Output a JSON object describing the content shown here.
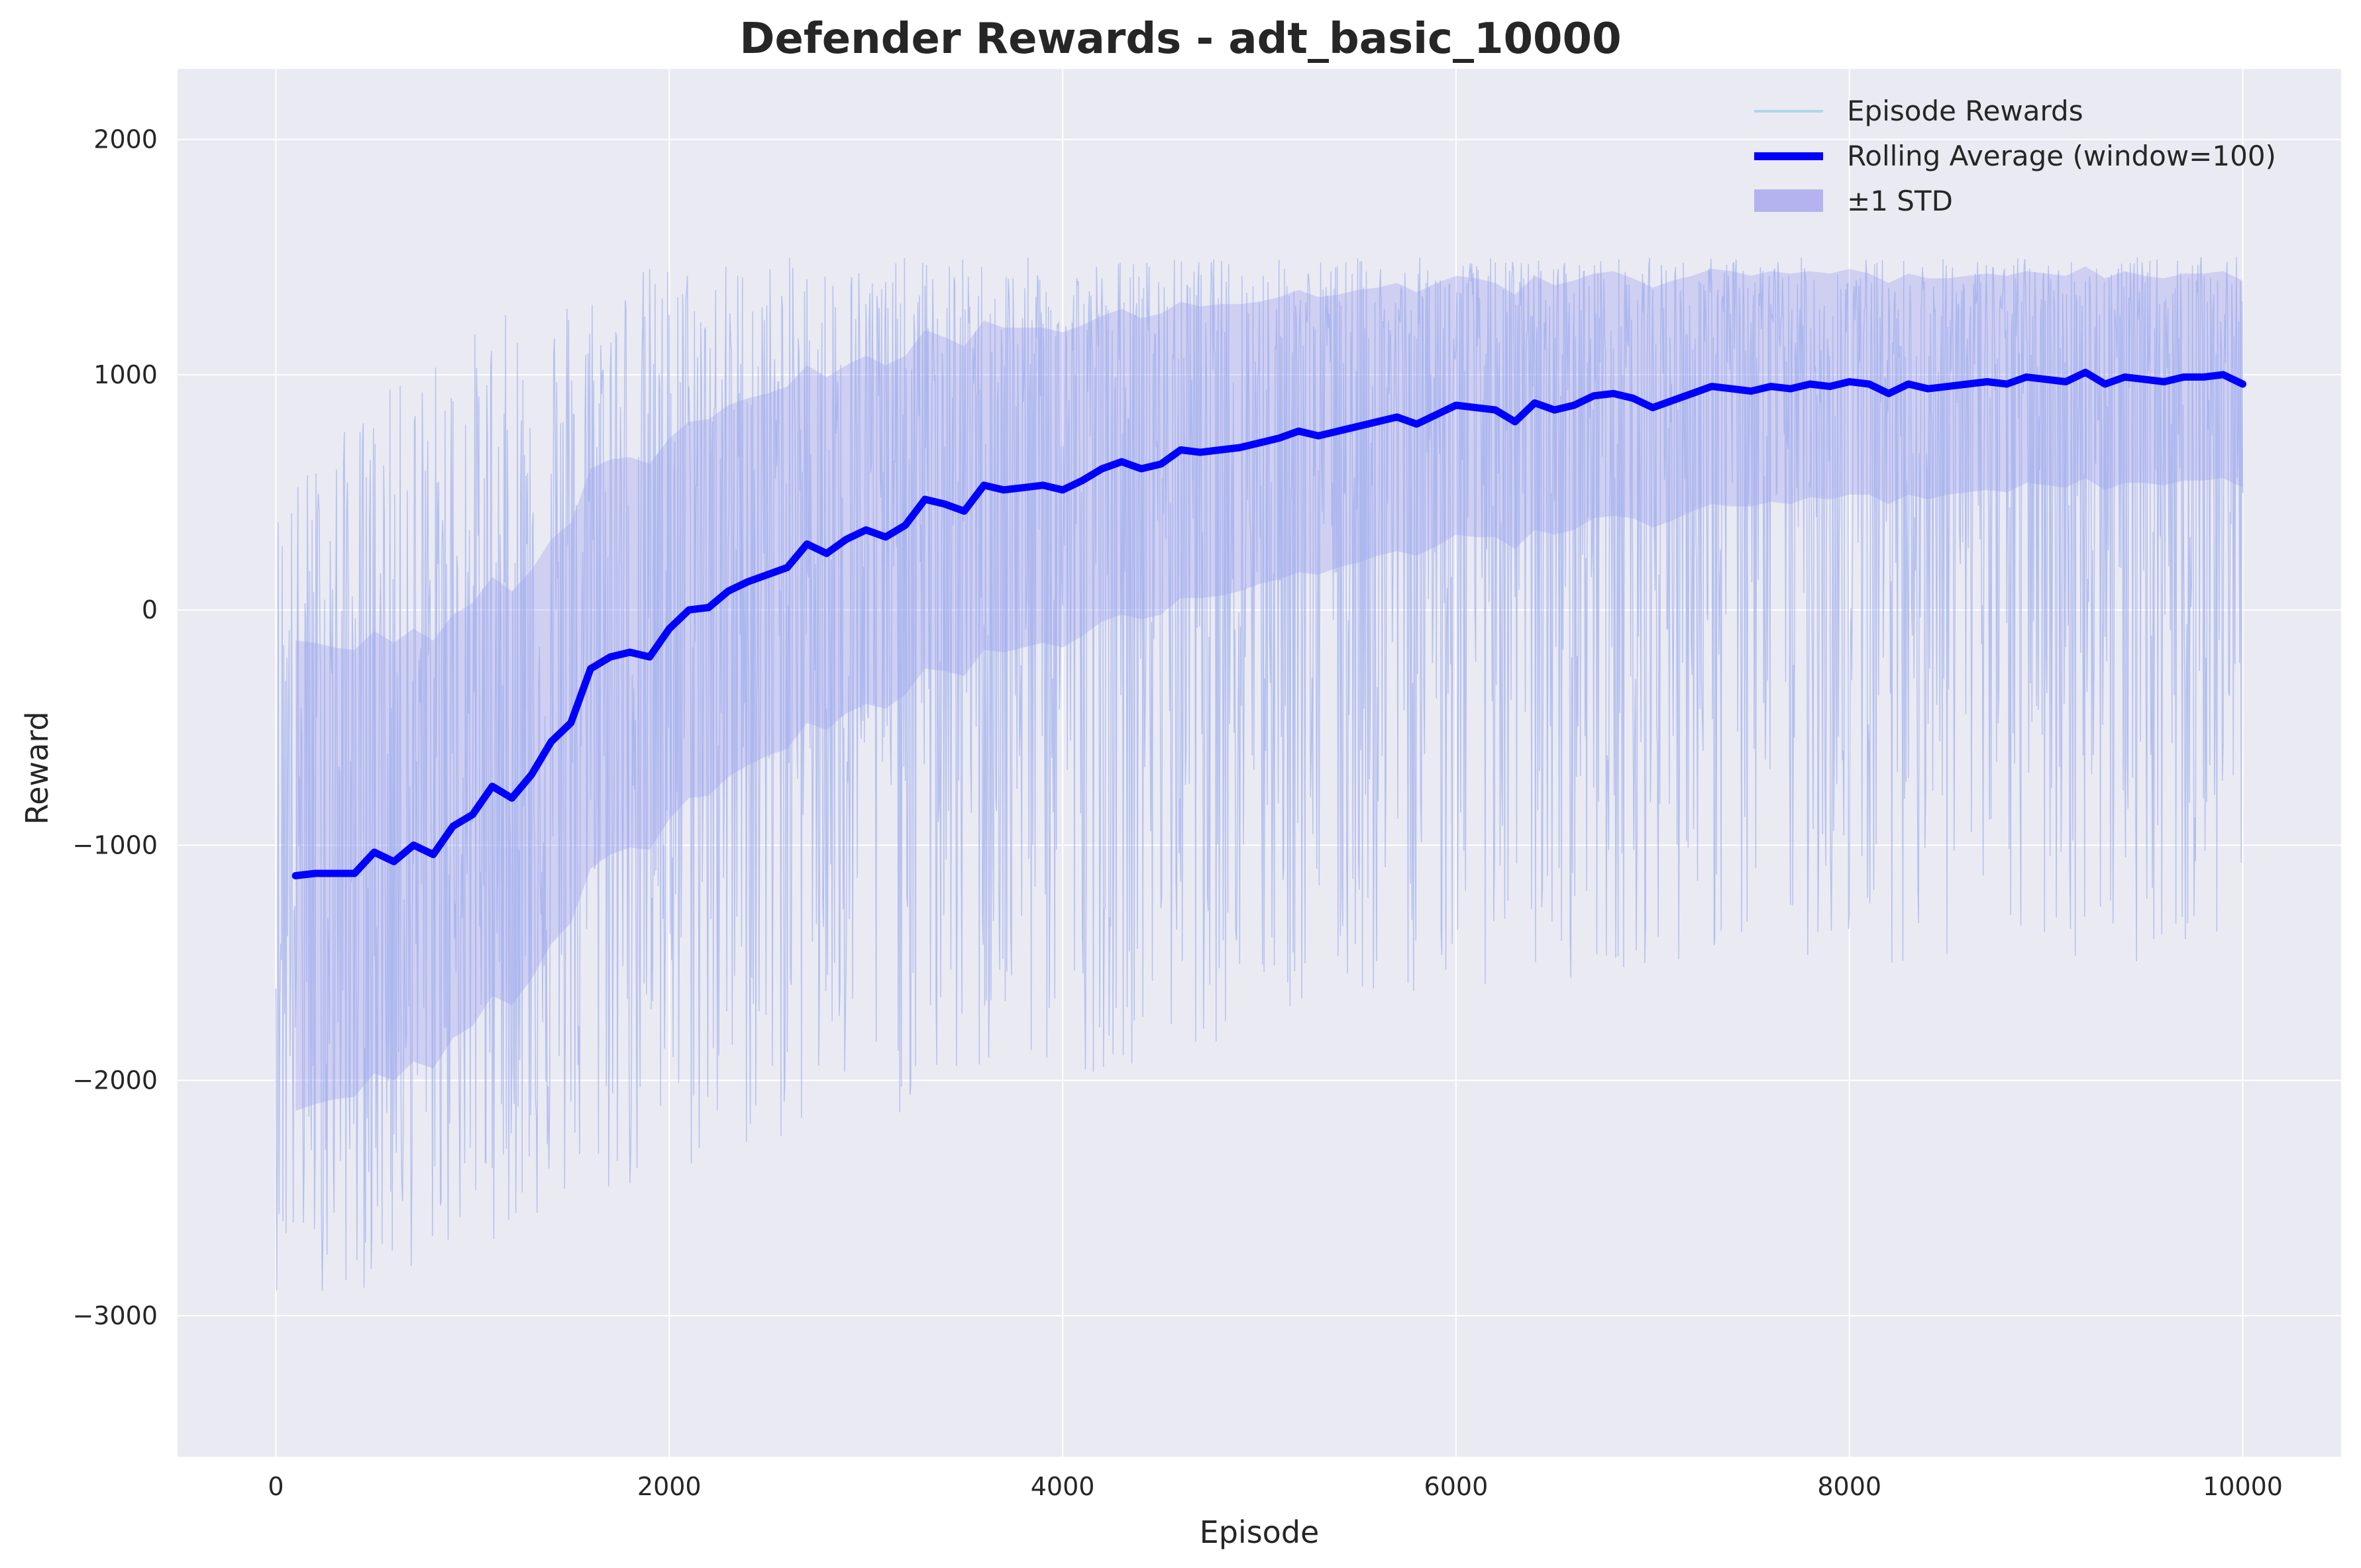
{
  "chart_data": {
    "type": "line",
    "title": "Defender Rewards - adt_basic_10000",
    "xlabel": "Episode",
    "ylabel": "Reward",
    "xlim": [
      -500,
      10500
    ],
    "ylim": [
      -3600,
      2300
    ],
    "x_ticks": [
      0,
      2000,
      4000,
      6000,
      8000,
      10000
    ],
    "x_tick_labels": [
      "0",
      "2000",
      "4000",
      "6000",
      "8000",
      "10000"
    ],
    "y_ticks": [
      -3000,
      -2000,
      -1000,
      0,
      1000,
      2000
    ],
    "y_tick_labels": [
      "−3000",
      "−2000",
      "−1000",
      "0",
      "1000",
      "2000"
    ],
    "grid": true,
    "legend_position": "top-right",
    "series": [
      {
        "name": "Episode Rewards",
        "style": "thin-noisy-line",
        "color": "#add8e6",
        "x_range": [
          0,
          10000
        ],
        "envelope_x": [
          0,
          500,
          1000,
          1500,
          2000,
          2500,
          3000,
          3500,
          4000,
          4500,
          5000,
          5500,
          6000,
          6500,
          7000,
          7500,
          8000,
          8500,
          9000,
          9500,
          10000
        ],
        "envelope_upper": [
          500,
          900,
          1200,
          1400,
          1500,
          1500,
          1500,
          1500,
          1500,
          1500,
          1500,
          1500,
          1500,
          1500,
          1500,
          1500,
          1500,
          1500,
          1500,
          1500,
          1500
        ],
        "envelope_lower": [
          -2900,
          -2900,
          -2700,
          -2600,
          -2500,
          -2300,
          -2200,
          -2100,
          -2000,
          -1900,
          -1800,
          -1700,
          -1600,
          -1600,
          -1500,
          -1500,
          -1500,
          -1500,
          -1500,
          -1500,
          -1500
        ]
      },
      {
        "name": "Rolling Average (window=100)",
        "style": "thick-line",
        "color": "#0000ff",
        "x": [
          100,
          200,
          300,
          400,
          500,
          600,
          700,
          800,
          900,
          1000,
          1100,
          1200,
          1300,
          1400,
          1500,
          1600,
          1700,
          1800,
          1900,
          2000,
          2100,
          2200,
          2300,
          2400,
          2500,
          2600,
          2700,
          2800,
          2900,
          3000,
          3100,
          3200,
          3300,
          3400,
          3500,
          3600,
          3700,
          3800,
          3900,
          4000,
          4100,
          4200,
          4300,
          4400,
          4500,
          4600,
          4700,
          4800,
          4900,
          5000,
          5100,
          5200,
          5300,
          5400,
          5500,
          5600,
          5700,
          5800,
          5900,
          6000,
          6100,
          6200,
          6300,
          6400,
          6500,
          6600,
          6700,
          6800,
          6900,
          7000,
          7100,
          7200,
          7300,
          7400,
          7500,
          7600,
          7700,
          7800,
          7900,
          8000,
          8100,
          8200,
          8300,
          8400,
          8500,
          8600,
          8700,
          8800,
          8900,
          9000,
          9100,
          9200,
          9300,
          9400,
          9500,
          9600,
          9700,
          9800,
          9900,
          10000
        ],
        "y": [
          -1130,
          -1120,
          -1120,
          -1120,
          -1030,
          -1070,
          -1000,
          -1040,
          -920,
          -870,
          -750,
          -800,
          -700,
          -560,
          -480,
          -250,
          -200,
          -180,
          -200,
          -80,
          0,
          10,
          80,
          120,
          150,
          180,
          280,
          240,
          300,
          340,
          310,
          360,
          470,
          450,
          420,
          530,
          510,
          520,
          530,
          510,
          550,
          600,
          630,
          600,
          620,
          680,
          670,
          680,
          690,
          710,
          730,
          760,
          740,
          760,
          780,
          800,
          820,
          790,
          830,
          870,
          860,
          850,
          800,
          880,
          850,
          870,
          910,
          920,
          900,
          860,
          890,
          920,
          950,
          940,
          930,
          950,
          940,
          960,
          950,
          970,
          960,
          920,
          960,
          940,
          950,
          960,
          970,
          960,
          990,
          980,
          970,
          1010,
          960,
          990,
          980,
          970,
          990,
          990,
          1000,
          960
        ],
        "std": [
          1000,
          980,
          960,
          950,
          940,
          930,
          920,
          910,
          900,
          900,
          890,
          880,
          870,
          860,
          850,
          850,
          840,
          830,
          820,
          810,
          800,
          800,
          790,
          780,
          770,
          770,
          760,
          750,
          740,
          740,
          730,
          720,
          720,
          710,
          700,
          700,
          690,
          680,
          670,
          670,
          660,
          650,
          650,
          640,
          640,
          630,
          620,
          620,
          610,
          600,
          600,
          600,
          590,
          580,
          580,
          570,
          570,
          560,
          560,
          550,
          550,
          540,
          540,
          540,
          530,
          530,
          520,
          520,
          510,
          510,
          510,
          500,
          500,
          500,
          490,
          490,
          490,
          480,
          480,
          480,
          470,
          470,
          470,
          470,
          460,
          460,
          460,
          460,
          450,
          450,
          450,
          450,
          450,
          450,
          440,
          440,
          440,
          440,
          440,
          440
        ]
      },
      {
        "name": "±1 STD",
        "style": "filled-band",
        "color": "#7070ee"
      }
    ]
  },
  "colors": {
    "plot_background": "#eaeaf2",
    "grid": "#ffffff",
    "episode_rewards": "#add8e6",
    "rolling_average": "#0000ff",
    "std_band": "#7070ee",
    "text": "#262626"
  }
}
